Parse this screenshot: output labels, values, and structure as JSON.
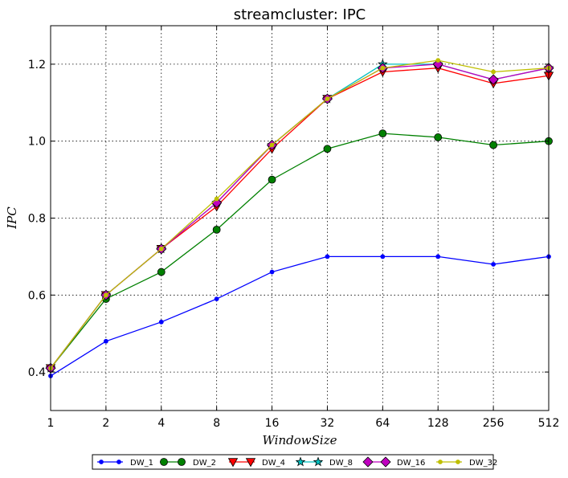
{
  "chart_data": {
    "type": "line",
    "title": "streamcluster: IPC",
    "xlabel": "WindowSize",
    "ylabel": "IPC",
    "x": [
      "1",
      "2",
      "4",
      "8",
      "16",
      "32",
      "64",
      "128",
      "256",
      "512"
    ],
    "xscale": "log2",
    "ylim": [
      0.3,
      1.3
    ],
    "yticks": [
      "0.4",
      "0.6",
      "0.8",
      "1.0",
      "1.2"
    ],
    "grid": true,
    "legend_position": "bottom-center",
    "series": [
      {
        "name": "DW_1",
        "color": "#0000ff",
        "marker": "point",
        "values": [
          0.39,
          0.48,
          0.53,
          0.59,
          0.66,
          0.7,
          0.7,
          0.7,
          0.68,
          0.7
        ]
      },
      {
        "name": "DW_2",
        "color": "#008000",
        "marker": "circle",
        "values": [
          0.41,
          0.59,
          0.66,
          0.77,
          0.9,
          0.98,
          1.02,
          1.01,
          0.99,
          1.0
        ]
      },
      {
        "name": "DW_4",
        "color": "#ff0000",
        "marker": "triangle-down",
        "values": [
          0.41,
          0.6,
          0.72,
          0.83,
          0.98,
          1.11,
          1.18,
          1.19,
          1.15,
          1.17
        ]
      },
      {
        "name": "DW_8",
        "color": "#00bfbf",
        "marker": "star",
        "values": [
          0.41,
          0.6,
          0.72,
          0.84,
          0.99,
          1.11,
          1.2,
          1.2,
          1.16,
          1.19
        ]
      },
      {
        "name": "DW_16",
        "color": "#bf00bf",
        "marker": "diamond",
        "values": [
          0.41,
          0.6,
          0.72,
          0.84,
          0.99,
          1.11,
          1.19,
          1.2,
          1.16,
          1.19
        ]
      },
      {
        "name": "DW_32",
        "color": "#bfbf00",
        "marker": "point",
        "values": [
          0.41,
          0.6,
          0.72,
          0.85,
          0.99,
          1.11,
          1.19,
          1.21,
          1.18,
          1.19
        ]
      }
    ]
  }
}
